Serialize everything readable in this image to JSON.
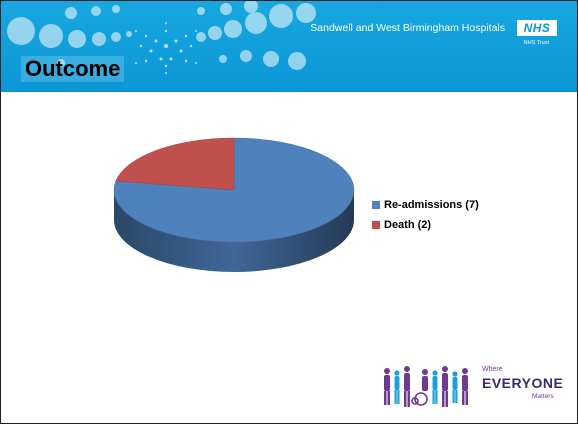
{
  "header": {
    "org_name": "Sandwell and West Birmingham Hospitals",
    "nhs_logo": "NHS",
    "trust_label": "NHS Trust"
  },
  "slide": {
    "title": "Outcome"
  },
  "chart_data": {
    "type": "pie",
    "style": "3d",
    "categories": [
      "Re-admissions (7)",
      "Death (2)"
    ],
    "values": [
      7,
      2
    ],
    "colors": [
      "#4f81bd",
      "#c0504d"
    ],
    "legend_position": "right"
  },
  "footer": {
    "where": "Where",
    "everyone": "EVERYONE",
    "matters": "Matters",
    "logo_icon": "people-group-icon"
  }
}
